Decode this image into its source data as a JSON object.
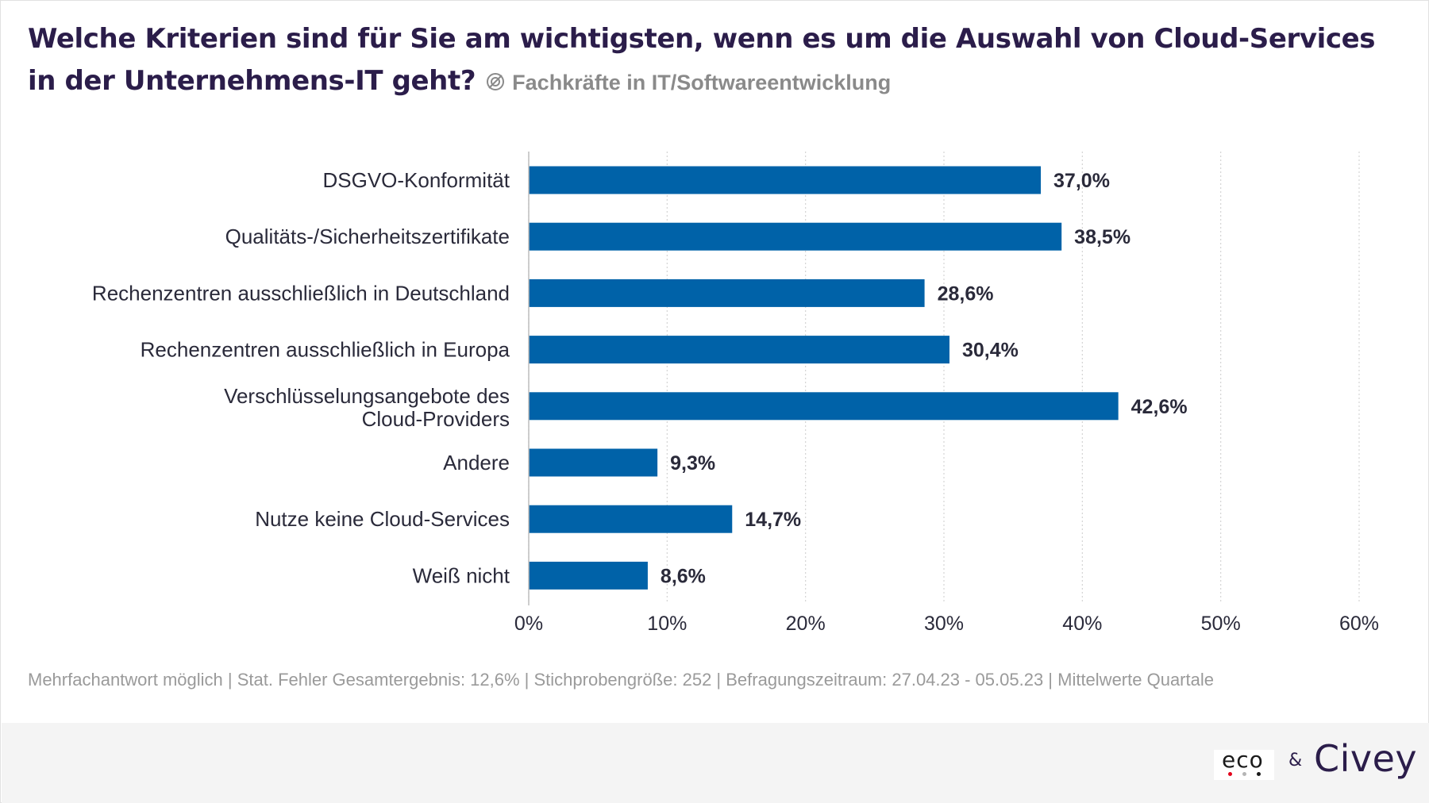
{
  "title": {
    "question": "Welche Kriterien sind für Sie am wichtigsten, wenn es um die Auswahl von Cloud-Services in der Unternehmens-IT geht?",
    "audience": "Fachkräfte in IT/Softwareentwicklung",
    "audience_icon": "target-icon"
  },
  "chart_data": {
    "type": "bar",
    "orientation": "horizontal",
    "categories": [
      "DSGVO-Konformität",
      "Qualitäts-/Sicherheitszertifikate",
      "Rechenzentren ausschließlich in Deutschland",
      "Rechenzentren ausschließlich in Europa",
      "Verschlüsselungsangebote des Cloud-Providers",
      "Andere",
      "Nutze keine Cloud-Services",
      "Weiß nicht"
    ],
    "values": [
      37.0,
      38.5,
      28.6,
      30.4,
      42.6,
      9.3,
      14.7,
      8.6
    ],
    "value_labels": [
      "37,0%",
      "38,5%",
      "28,6%",
      "30,4%",
      "42,6%",
      "9,3%",
      "14,7%",
      "8,6%"
    ],
    "xlim": [
      0,
      60
    ],
    "x_ticks": [
      0,
      10,
      20,
      30,
      40,
      50,
      60
    ],
    "x_tick_labels": [
      "0%",
      "10%",
      "20%",
      "30%",
      "40%",
      "50%",
      "60%"
    ],
    "grid": "vertical dotted",
    "bar_color": "#0062a8"
  },
  "footnote": "Mehrfachantwort möglich | Stat. Fehler Gesamtergebnis: 12,6% | Stichprobengröße: 252 | Befragungszeitraum: 27.04.23 - 05.05.23 | Mittelwerte Quartale",
  "footer": {
    "logo_eco": "eco",
    "ampersand": "&",
    "logo_civey": "Civey"
  }
}
